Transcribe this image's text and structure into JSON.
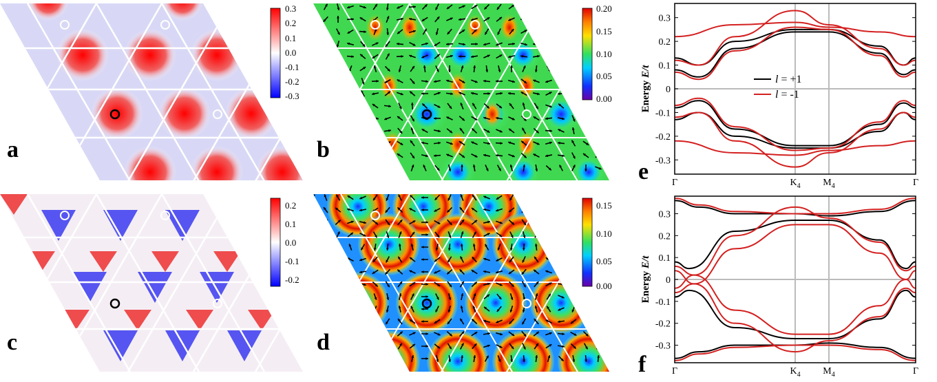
{
  "colors": {
    "red": "#e01010",
    "blue": "#1010e0",
    "line_black": "#000000",
    "line_red": "#d42020",
    "grid": "#bbbbbb"
  },
  "panels": {
    "a": {
      "label": "a",
      "colorbar": {
        "ticks": [
          "0.3",
          "0.2",
          "0.1",
          "0.0",
          "-0.1",
          "-0.2",
          "-0.3"
        ],
        "colormap": "blue-white-red"
      }
    },
    "b": {
      "label": "b",
      "colorbar": {
        "ticks": [
          "0.20",
          "0.15",
          "0.10",
          "0.05",
          "0.00"
        ],
        "colormap": "rainbow"
      }
    },
    "c": {
      "label": "c",
      "colorbar": {
        "ticks": [
          "0.2",
          "0.1",
          "0.0",
          "-0.1",
          "-0.2"
        ],
        "colormap": "blue-white-red"
      }
    },
    "d": {
      "label": "d",
      "colorbar": {
        "ticks": [
          "0.15",
          "0.10",
          "0.05",
          "0.00"
        ],
        "colormap": "rainbow"
      }
    },
    "e": {
      "label": "e"
    },
    "f": {
      "label": "f"
    }
  },
  "chart_data": [
    {
      "type": "line",
      "panel": "e",
      "ylabel": "Energy E/t",
      "ylabel_parts": {
        "prefix": "Energy ",
        "italic": "E",
        "suffix": "/t"
      },
      "ylim": [
        -0.36,
        0.36
      ],
      "yticks": [
        "0.3",
        "0.2",
        "0.1",
        "0",
        "-0.1",
        "-0.2",
        "-0.3"
      ],
      "xticks": [
        {
          "label": "Γ",
          "sub": "",
          "pos": 0.0
        },
        {
          "label": "K",
          "sub": "4",
          "pos": 0.5
        },
        {
          "label": "M",
          "sub": "4",
          "pos": 0.64
        },
        {
          "label": "Γ",
          "sub": "",
          "pos": 1.0
        }
      ],
      "legend": [
        {
          "name": "l = +1",
          "italic": "l",
          "rest": " = +1",
          "color": "#000000"
        },
        {
          "name": "l = -1",
          "italic": "l",
          "rest": " = -1",
          "color": "#d42020"
        }
      ],
      "legend_position": "center",
      "series": [
        {
          "name": "l = +1",
          "color": "#000000",
          "bands": [
            [
              [
                0,
                0.13
              ],
              [
                0.1,
                0.1
              ],
              [
                0.25,
                0.2
              ],
              [
                0.5,
                0.25
              ],
              [
                0.64,
                0.25
              ],
              [
                0.85,
                0.18
              ],
              [
                0.95,
                0.1
              ],
              [
                1,
                0.13
              ]
            ],
            [
              [
                0,
                0.08
              ],
              [
                0.1,
                0.05
              ],
              [
                0.25,
                0.17
              ],
              [
                0.5,
                0.24
              ],
              [
                0.64,
                0.24
              ],
              [
                0.85,
                0.15
              ],
              [
                0.95,
                0.06
              ],
              [
                1,
                0.08
              ]
            ],
            [
              [
                0,
                -0.08
              ],
              [
                0.1,
                -0.05
              ],
              [
                0.25,
                -0.17
              ],
              [
                0.5,
                -0.24
              ],
              [
                0.64,
                -0.24
              ],
              [
                0.85,
                -0.15
              ],
              [
                0.95,
                -0.06
              ],
              [
                1,
                -0.08
              ]
            ],
            [
              [
                0,
                -0.13
              ],
              [
                0.1,
                -0.1
              ],
              [
                0.25,
                -0.2
              ],
              [
                0.5,
                -0.25
              ],
              [
                0.64,
                -0.25
              ],
              [
                0.85,
                -0.18
              ],
              [
                0.95,
                -0.1
              ],
              [
                1,
                -0.13
              ]
            ]
          ]
        },
        {
          "name": "l = -1",
          "color": "#d42020",
          "bands": [
            [
              [
                0,
                0.22
              ],
              [
                0.25,
                0.27
              ],
              [
                0.5,
                0.28
              ],
              [
                0.64,
                0.26
              ],
              [
                0.85,
                0.24
              ],
              [
                1,
                0.22
              ]
            ],
            [
              [
                0,
                0.12
              ],
              [
                0.1,
                0.1
              ],
              [
                0.25,
                0.22
              ],
              [
                0.5,
                0.33
              ],
              [
                0.64,
                0.27
              ],
              [
                0.85,
                0.17
              ],
              [
                0.95,
                0.1
              ],
              [
                1,
                0.12
              ]
            ],
            [
              [
                0,
                0.07
              ],
              [
                0.1,
                0.04
              ],
              [
                0.25,
                0.16
              ],
              [
                0.5,
                0.26
              ],
              [
                0.64,
                0.25
              ],
              [
                0.85,
                0.14
              ],
              [
                0.95,
                0.05
              ],
              [
                1,
                0.07
              ]
            ],
            [
              [
                0,
                -0.07
              ],
              [
                0.1,
                -0.04
              ],
              [
                0.25,
                -0.16
              ],
              [
                0.5,
                -0.26
              ],
              [
                0.64,
                -0.25
              ],
              [
                0.85,
                -0.14
              ],
              [
                0.95,
                -0.05
              ],
              [
                1,
                -0.07
              ]
            ],
            [
              [
                0,
                -0.12
              ],
              [
                0.1,
                -0.1
              ],
              [
                0.25,
                -0.22
              ],
              [
                0.5,
                -0.33
              ],
              [
                0.64,
                -0.27
              ],
              [
                0.85,
                -0.17
              ],
              [
                0.95,
                -0.1
              ],
              [
                1,
                -0.12
              ]
            ],
            [
              [
                0,
                -0.22
              ],
              [
                0.25,
                -0.27
              ],
              [
                0.5,
                -0.28
              ],
              [
                0.64,
                -0.26
              ],
              [
                0.85,
                -0.24
              ],
              [
                1,
                -0.22
              ]
            ]
          ]
        }
      ]
    },
    {
      "type": "line",
      "panel": "f",
      "ylabel": "Energy E/t",
      "ylabel_parts": {
        "prefix": "Energy ",
        "italic": "E",
        "suffix": "/t"
      },
      "ylim": [
        -0.38,
        0.38
      ],
      "yticks": [
        "0.3",
        "0.2",
        "0.1",
        "0",
        "-0.1",
        "-0.2",
        "-0.3"
      ],
      "xticks": [
        {
          "label": "Γ",
          "sub": "",
          "pos": 0.0
        },
        {
          "label": "K",
          "sub": "4",
          "pos": 0.5
        },
        {
          "label": "M",
          "sub": "4",
          "pos": 0.64
        },
        {
          "label": "Γ",
          "sub": "",
          "pos": 1.0
        }
      ],
      "series": [
        {
          "name": "l = +1",
          "color": "#000000",
          "bands": [
            [
              [
                0,
                0.36
              ],
              [
                0.1,
                0.33
              ],
              [
                0.25,
                0.3
              ],
              [
                0.5,
                0.3
              ],
              [
                0.64,
                0.29
              ],
              [
                0.85,
                0.31
              ],
              [
                1,
                0.36
              ]
            ],
            [
              [
                0,
                0.08
              ],
              [
                0.06,
                0.05
              ],
              [
                0.25,
                0.22
              ],
              [
                0.5,
                0.27
              ],
              [
                0.64,
                0.27
              ],
              [
                0.85,
                0.18
              ],
              [
                0.96,
                0.05
              ],
              [
                1,
                0.08
              ]
            ],
            [
              [
                0,
                -0.08
              ],
              [
                0.06,
                -0.05
              ],
              [
                0.25,
                -0.22
              ],
              [
                0.5,
                -0.27
              ],
              [
                0.64,
                -0.27
              ],
              [
                0.85,
                -0.18
              ],
              [
                0.96,
                -0.05
              ],
              [
                1,
                -0.08
              ]
            ],
            [
              [
                0,
                -0.36
              ],
              [
                0.1,
                -0.33
              ],
              [
                0.25,
                -0.3
              ],
              [
                0.5,
                -0.3
              ],
              [
                0.64,
                -0.29
              ],
              [
                0.85,
                -0.31
              ],
              [
                1,
                -0.36
              ]
            ]
          ]
        },
        {
          "name": "l = -1",
          "color": "#d42020",
          "bands": [
            [
              [
                0,
                0.37
              ],
              [
                0.1,
                0.34
              ],
              [
                0.25,
                0.31
              ],
              [
                0.5,
                0.3
              ],
              [
                0.64,
                0.3
              ],
              [
                0.85,
                0.32
              ],
              [
                1,
                0.37
              ]
            ],
            [
              [
                0,
                0.06
              ],
              [
                0.08,
                0.02
              ],
              [
                0.25,
                0.2
              ],
              [
                0.5,
                0.33
              ],
              [
                0.64,
                0.28
              ],
              [
                0.85,
                0.17
              ],
              [
                0.96,
                0.04
              ],
              [
                1,
                0.06
              ]
            ],
            [
              [
                0,
                0.04
              ],
              [
                0.08,
                -0.02
              ],
              [
                0.25,
                0.14
              ],
              [
                0.5,
                0.25
              ],
              [
                0.64,
                0.25
              ],
              [
                0.85,
                0.12
              ],
              [
                0.96,
                0.0
              ],
              [
                1,
                0.04
              ]
            ],
            [
              [
                0,
                -0.04
              ],
              [
                0.08,
                0.02
              ],
              [
                0.25,
                -0.14
              ],
              [
                0.5,
                -0.25
              ],
              [
                0.64,
                -0.25
              ],
              [
                0.85,
                -0.12
              ],
              [
                0.96,
                0.0
              ],
              [
                1,
                -0.04
              ]
            ],
            [
              [
                0,
                -0.06
              ],
              [
                0.08,
                -0.02
              ],
              [
                0.25,
                -0.2
              ],
              [
                0.5,
                -0.33
              ],
              [
                0.64,
                -0.28
              ],
              [
                0.85,
                -0.17
              ],
              [
                0.96,
                -0.04
              ],
              [
                1,
                -0.06
              ]
            ],
            [
              [
                0,
                -0.37
              ],
              [
                0.1,
                -0.34
              ],
              [
                0.25,
                -0.31
              ],
              [
                0.5,
                -0.3
              ],
              [
                0.64,
                -0.3
              ],
              [
                0.85,
                -0.32
              ],
              [
                1,
                -0.37
              ]
            ]
          ]
        }
      ]
    }
  ]
}
